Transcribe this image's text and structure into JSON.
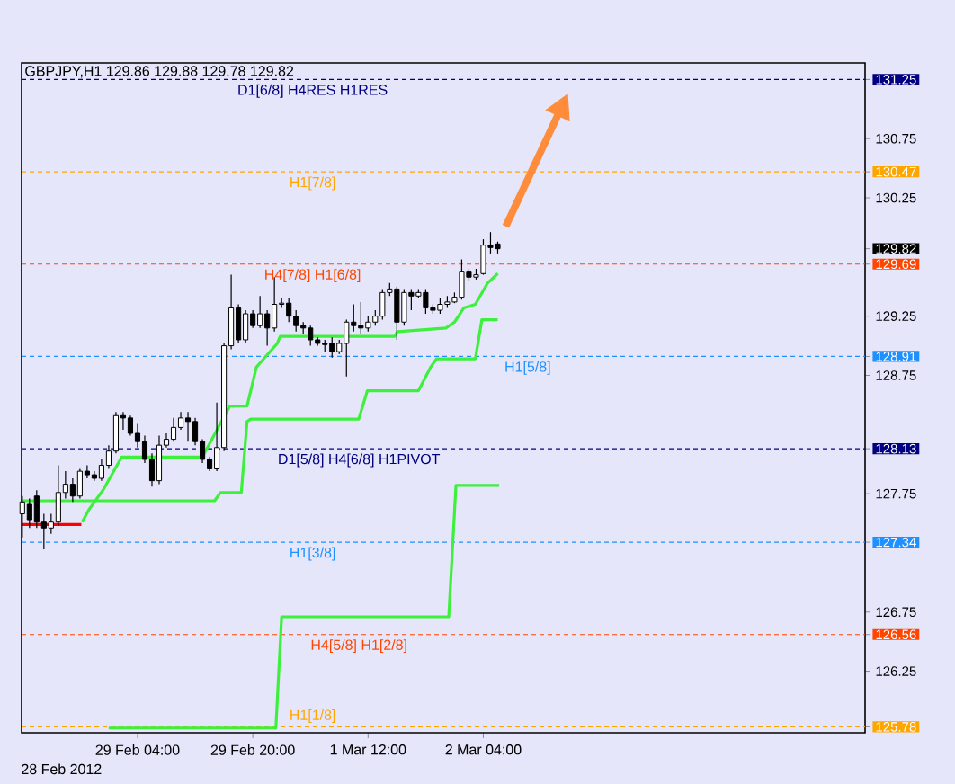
{
  "chart_data": {
    "type": "candlestick",
    "title": "GBPJPY,H1  129.86 129.88 129.78 129.82",
    "x": [
      "2012-02-28T12:00",
      "2012-02-28T13:00",
      "2012-02-28T14:00",
      "2012-02-28T15:00",
      "2012-02-28T16:00",
      "2012-02-28T17:00",
      "2012-02-28T18:00",
      "2012-02-28T19:00",
      "2012-02-28T20:00",
      "2012-02-28T21:00",
      "2012-02-28T22:00",
      "2012-02-28T23:00",
      "2012-02-29T00:00",
      "2012-02-29T01:00",
      "2012-02-29T02:00",
      "2012-02-29T03:00",
      "2012-02-29T04:00",
      "2012-02-29T05:00",
      "2012-02-29T06:00",
      "2012-02-29T07:00",
      "2012-02-29T08:00",
      "2012-02-29T09:00",
      "2012-02-29T10:00",
      "2012-02-29T11:00",
      "2012-02-29T12:00",
      "2012-02-29T13:00",
      "2012-02-29T14:00",
      "2012-02-29T15:00",
      "2012-02-29T16:00",
      "2012-02-29T17:00",
      "2012-02-29T18:00",
      "2012-02-29T19:00",
      "2012-02-29T20:00",
      "2012-02-29T21:00",
      "2012-02-29T22:00",
      "2012-02-29T23:00",
      "2012-03-01T00:00",
      "2012-03-01T01:00",
      "2012-03-01T02:00",
      "2012-03-01T03:00",
      "2012-03-01T04:00",
      "2012-03-01T05:00",
      "2012-03-01T06:00",
      "2012-03-01T07:00",
      "2012-03-01T08:00",
      "2012-03-01T09:00",
      "2012-03-01T10:00",
      "2012-03-01T11:00",
      "2012-03-01T12:00",
      "2012-03-01T13:00",
      "2012-03-01T14:00",
      "2012-03-01T15:00",
      "2012-03-01T16:00",
      "2012-03-01T17:00",
      "2012-03-01T18:00",
      "2012-03-01T19:00",
      "2012-03-01T20:00",
      "2012-03-01T21:00",
      "2012-03-01T22:00",
      "2012-03-01T23:00",
      "2012-03-02T00:00",
      "2012-03-02T01:00",
      "2012-03-02T02:00",
      "2012-03-02T03:00",
      "2012-03-02T04:00",
      "2012-03-02T05:00",
      "2012-03-02T06:00"
    ],
    "ohlc": [
      [
        127.58,
        127.73,
        127.38,
        127.68
      ],
      [
        127.66,
        127.71,
        127.46,
        127.53
      ],
      [
        127.73,
        127.78,
        127.46,
        127.51
      ],
      [
        127.51,
        127.58,
        127.28,
        127.46
      ],
      [
        127.46,
        127.58,
        127.41,
        127.51
      ],
      [
        127.51,
        127.99,
        127.48,
        127.76
      ],
      [
        127.76,
        127.94,
        127.71,
        127.83
      ],
      [
        127.83,
        127.88,
        127.68,
        127.73
      ],
      [
        127.73,
        127.96,
        127.71,
        127.94
      ],
      [
        127.94,
        127.99,
        127.88,
        127.91
      ],
      [
        127.91,
        127.94,
        127.86,
        127.88
      ],
      [
        127.88,
        128.04,
        127.86,
        127.99
      ],
      [
        127.99,
        128.16,
        127.96,
        128.11
      ],
      [
        128.11,
        128.44,
        128.09,
        128.41
      ],
      [
        128.41,
        128.44,
        128.29,
        128.39
      ],
      [
        128.39,
        128.41,
        128.24,
        128.26
      ],
      [
        128.26,
        128.34,
        128.14,
        128.19
      ],
      [
        128.19,
        128.24,
        128.01,
        128.04
      ],
      [
        128.04,
        128.09,
        127.81,
        127.86
      ],
      [
        127.86,
        128.24,
        127.83,
        128.16
      ],
      [
        128.16,
        128.26,
        128.14,
        128.21
      ],
      [
        128.21,
        128.39,
        128.19,
        128.31
      ],
      [
        128.31,
        128.44,
        128.29,
        128.39
      ],
      [
        128.39,
        128.44,
        128.19,
        128.36
      ],
      [
        128.36,
        128.39,
        128.16,
        128.19
      ],
      [
        128.19,
        128.21,
        128.01,
        128.04
      ],
      [
        128.04,
        128.06,
        127.94,
        127.96
      ],
      [
        127.96,
        128.52,
        127.94,
        128.14
      ],
      [
        128.14,
        129.02,
        128.11,
        129.0
      ],
      [
        129.0,
        129.6,
        128.97,
        129.32
      ],
      [
        129.32,
        129.35,
        129.02,
        129.05
      ],
      [
        129.05,
        129.3,
        129.02,
        129.27
      ],
      [
        129.27,
        129.3,
        129.15,
        129.17
      ],
      [
        129.17,
        129.42,
        129.15,
        129.27
      ],
      [
        129.27,
        129.3,
        129.0,
        129.15
      ],
      [
        129.15,
        129.58,
        129.12,
        129.35
      ],
      [
        129.35,
        129.4,
        129.32,
        129.36
      ],
      [
        129.36,
        129.4,
        129.2,
        129.25
      ],
      [
        129.25,
        129.3,
        129.12,
        129.17
      ],
      [
        129.17,
        129.2,
        129.1,
        129.15
      ],
      [
        129.15,
        129.17,
        129.0,
        129.05
      ],
      [
        129.05,
        129.07,
        129.0,
        129.02
      ],
      [
        129.02,
        129.05,
        128.95,
        129.01
      ],
      [
        129.02,
        129.07,
        128.9,
        128.95
      ],
      [
        128.95,
        129.05,
        128.93,
        129.02
      ],
      [
        129.02,
        129.22,
        128.74,
        129.2
      ],
      [
        129.2,
        129.35,
        129.12,
        129.17
      ],
      [
        129.17,
        129.37,
        129.1,
        129.15
      ],
      [
        129.15,
        129.25,
        129.12,
        129.2
      ],
      [
        129.2,
        129.3,
        129.17,
        129.25
      ],
      [
        129.25,
        129.48,
        129.22,
        129.45
      ],
      [
        129.45,
        129.53,
        129.42,
        129.48
      ],
      [
        129.48,
        129.5,
        129.05,
        129.2
      ],
      [
        129.2,
        129.48,
        129.17,
        129.45
      ],
      [
        129.45,
        129.48,
        129.3,
        129.42
      ],
      [
        129.42,
        129.48,
        129.4,
        129.45
      ],
      [
        129.45,
        129.48,
        129.27,
        129.32
      ],
      [
        129.32,
        129.35,
        129.27,
        129.3
      ],
      [
        129.3,
        129.4,
        129.27,
        129.35
      ],
      [
        129.35,
        129.42,
        129.32,
        129.37
      ],
      [
        129.37,
        129.45,
        129.36,
        129.41
      ],
      [
        129.41,
        129.73,
        129.39,
        129.63
      ],
      [
        129.63,
        129.65,
        129.55,
        129.58
      ],
      [
        129.58,
        129.65,
        129.56,
        129.6
      ],
      [
        129.61,
        129.9,
        129.6,
        129.85
      ],
      [
        129.85,
        129.96,
        129.78,
        129.83
      ],
      [
        129.86,
        129.88,
        129.78,
        129.82
      ]
    ],
    "series": [
      {
        "type": "line",
        "color": "#3cf03c",
        "x": [
          "2012-02-28T12:00",
          "2012-02-29T14:42",
          "2012-02-29T15:30",
          "2012-02-29T18:24",
          "2012-02-29T19:12",
          "2012-02-29T19:42",
          "2012-03-01T10:42",
          "2012-03-01T11:54",
          "2012-03-01T19:00",
          "2012-03-01T20:42",
          "2012-03-01T21:30",
          "2012-03-02T02:54",
          "2012-03-02T03:48",
          "2012-03-02T06:00"
        ],
        "values": [
          127.69,
          127.69,
          127.76,
          127.76,
          128.36,
          128.38,
          128.38,
          128.62,
          128.62,
          128.82,
          128.89,
          128.89,
          129.22,
          129.22
        ]
      },
      {
        "type": "line",
        "color": "#3cf03c",
        "x": [
          "2012-02-28T20:18",
          "2012-02-28T21:12",
          "2012-02-28T23:12",
          "2012-02-29T01:48",
          "2012-02-29T13:00",
          "2012-02-29T16:48",
          "2012-02-29T19:12",
          "2012-02-29T20:30",
          "2012-02-29T23:24",
          "2012-02-29T23:48",
          "2012-03-01T15:42",
          "2012-03-01T16:06",
          "2012-03-01T22:48",
          "2012-03-02T00:00",
          "2012-03-02T01:18",
          "2012-03-02T02:54",
          "2012-03-02T04:36",
          "2012-03-02T06:00"
        ],
        "values": [
          127.51,
          127.61,
          127.78,
          128.06,
          128.06,
          128.49,
          128.49,
          128.82,
          129.02,
          129.08,
          129.08,
          129.12,
          129.15,
          129.2,
          129.32,
          129.35,
          129.53,
          129.61
        ]
      },
      {
        "type": "line",
        "color": "#3cf03c",
        "x": [
          "2012-02-29T00:00",
          "2012-02-29T23:12",
          "2012-03-01T00:00",
          "2012-03-01T23:12",
          "2012-03-02T00:12",
          "2012-03-02T06:12"
        ],
        "values": [
          125.77,
          125.77,
          126.71,
          126.71,
          127.82,
          127.82
        ]
      },
      {
        "type": "line",
        "color": "#ff0000",
        "x": [
          "2012-02-28T12:00",
          "2012-02-28T20:12"
        ],
        "values": [
          127.49,
          127.49
        ]
      }
    ],
    "xlim": [
      "2012-02-28T11:54",
      "2012-03-04T09:00"
    ],
    "ylim": [
      125.73,
      131.39
    ],
    "annotations": [
      "28 Feb 2012"
    ],
    "xticks": [
      {
        "value": "2012-02-29T04:00",
        "label": "29 Feb 04:00"
      },
      {
        "value": "2012-02-29T20:00",
        "label": "29 Feb 20:00"
      },
      {
        "value": "2012-03-01T12:00",
        "label": "1 Mar 12:00"
      },
      {
        "value": "2012-03-02T04:00",
        "label": "2 Mar 04:00"
      }
    ],
    "yticks": [
      125.78,
      126.25,
      126.56,
      126.75,
      127.34,
      127.75,
      128.13,
      128.75,
      128.91,
      129.25,
      129.69,
      129.82,
      130.25,
      130.47,
      130.75,
      131.25
    ],
    "ref_lines": [
      {
        "axis": "y",
        "value": 131.25,
        "label": "D1[6/8] H4RES H1RES",
        "color": "#000080",
        "line_style": "dashed"
      },
      {
        "axis": "y",
        "value": 130.47,
        "label": "H1[7/8]",
        "color": "#ffa500",
        "line_style": "dashed"
      },
      {
        "axis": "y",
        "value": 129.69,
        "label": "H4[7/8] H1[6/8]",
        "color": "#ff4500",
        "line_style": "dashed"
      },
      {
        "axis": "y",
        "value": 128.91,
        "label": "H1[5/8]",
        "color": "#1e90ff",
        "line_style": "dashed"
      },
      {
        "axis": "y",
        "value": 128.13,
        "label": "D1[5/8] H4[6/8] H1PIVOT",
        "color": "#000080",
        "line_style": "dashed"
      },
      {
        "axis": "y",
        "value": 127.34,
        "label": "H1[3/8]",
        "color": "#1e90ff",
        "line_style": "dashed"
      },
      {
        "axis": "y",
        "value": 126.56,
        "label": "H4[5/8] H1[2/8]",
        "color": "#ff4500",
        "line_style": "dashed"
      },
      {
        "axis": "y",
        "value": 125.78,
        "label": "H1[1/8]",
        "color": "#ffa500",
        "line_style": "dashed"
      }
    ]
  }
}
